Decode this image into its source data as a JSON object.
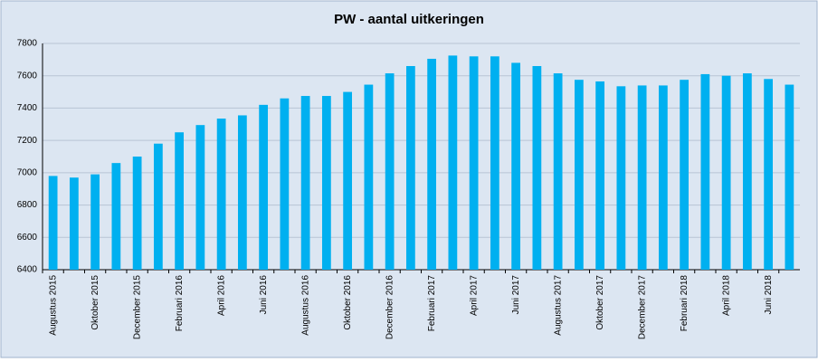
{
  "chart_data": {
    "type": "bar",
    "title": "PW - aantal uitkeringen",
    "categories": [
      "Augustus 2015",
      null,
      "Oktober 2015",
      null,
      "December 2015",
      null,
      "Februari 2016",
      null,
      "April 2016",
      null,
      "Juni 2016",
      null,
      "Augustus 2016",
      null,
      "Oktober 2016",
      null,
      "December 2016",
      null,
      "Februari 2017",
      null,
      "April 2017",
      null,
      "Juni 2017",
      null,
      "Augustus 2017",
      null,
      "Oktober 2017",
      null,
      "December 2017",
      null,
      "Februari 2018",
      null,
      "April 2018",
      null,
      "Juni 2018",
      null
    ],
    "values": [
      6980,
      6970,
      6990,
      7060,
      7100,
      7180,
      7250,
      7295,
      7335,
      7355,
      7420,
      7460,
      7475,
      7475,
      7500,
      7545,
      7615,
      7660,
      7705,
      7725,
      7720,
      7720,
      7680,
      7660,
      7615,
      7575,
      7565,
      7535,
      7540,
      7540,
      7575,
      7610,
      7600,
      7615,
      7580,
      7545
    ],
    "color": "#00b0f0",
    "ylim": [
      6400,
      7800
    ],
    "yticks": [
      6400,
      6600,
      6800,
      7000,
      7200,
      7400,
      7600,
      7800
    ],
    "grid": true
  }
}
